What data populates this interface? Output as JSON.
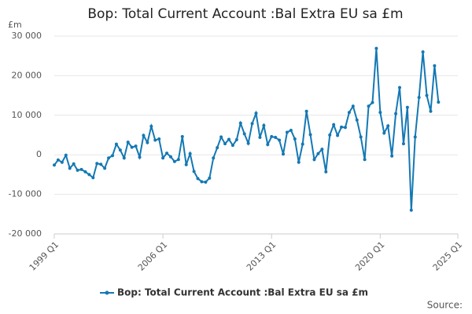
{
  "chart_data": {
    "type": "line",
    "title": "Bop: Total Current Account :Bal Extra EU sa £m",
    "y_label": "£m",
    "source": "Source:",
    "x": [
      1999,
      1999.25,
      1999.5,
      1999.75,
      2000,
      2000.25,
      2000.5,
      2000.75,
      2001,
      2001.25,
      2001.5,
      2001.75,
      2002,
      2002.25,
      2002.5,
      2002.75,
      2003,
      2003.25,
      2003.5,
      2003.75,
      2004,
      2004.25,
      2004.5,
      2004.75,
      2005,
      2005.25,
      2005.5,
      2005.75,
      2006,
      2006.25,
      2006.5,
      2006.75,
      2007,
      2007.25,
      2007.5,
      2007.75,
      2008,
      2008.25,
      2008.5,
      2008.75,
      2009,
      2009.25,
      2009.5,
      2009.75,
      2010,
      2010.25,
      2010.5,
      2010.75,
      2011,
      2011.25,
      2011.5,
      2011.75,
      2012,
      2012.25,
      2012.5,
      2012.75,
      2013,
      2013.25,
      2013.5,
      2013.75,
      2014,
      2014.25,
      2014.5,
      2014.75,
      2015,
      2015.25,
      2015.5,
      2015.75,
      2016,
      2016.25,
      2016.5,
      2016.75,
      2017,
      2017.25,
      2017.5,
      2017.75,
      2018,
      2018.25,
      2018.5,
      2018.75,
      2019,
      2019.25,
      2019.5,
      2019.75,
      2020,
      2020.25,
      2020.5,
      2020.75,
      2021,
      2021.25,
      2021.5,
      2021.75,
      2022,
      2022.25,
      2022.5,
      2022.75,
      2023,
      2023.25,
      2023.5,
      2023.75
    ],
    "series": [
      {
        "name": "Bop: Total Current Account :Bal Extra EU sa £m",
        "color": "#1478b4",
        "values": [
          -2600,
          -1300,
          -1900,
          -100,
          -3400,
          -2300,
          -3900,
          -3700,
          -4300,
          -5000,
          -5800,
          -2200,
          -2400,
          -3400,
          -800,
          -200,
          2700,
          1200,
          -800,
          3200,
          1900,
          2200,
          -600,
          4900,
          3100,
          7200,
          3700,
          4000,
          -800,
          400,
          -500,
          -1700,
          -1200,
          4600,
          -2500,
          300,
          -4200,
          -6000,
          -6800,
          -6900,
          -5900,
          -800,
          1800,
          4500,
          2800,
          3900,
          2400,
          3800,
          8000,
          5300,
          2900,
          7900,
          10500,
          4400,
          7400,
          2600,
          4600,
          4400,
          3700,
          200,
          5700,
          6200,
          4000,
          -1900,
          2700,
          11000,
          5100,
          -1200,
          300,
          1400,
          -4300,
          5000,
          7600,
          4900,
          7000,
          6900,
          10700,
          12300,
          8800,
          4500,
          -1200,
          12300,
          13200,
          26900,
          10700,
          5500,
          7300,
          -300,
          10400,
          17000,
          2800,
          12000,
          -14000,
          4500,
          14500,
          26000,
          15000,
          11000,
          22500,
          13300
        ]
      }
    ],
    "xlim": [
      1999,
      2025
    ],
    "xticks": [
      {
        "value": 1999,
        "label": "1999 Q1"
      },
      {
        "value": 2006,
        "label": "2006 Q1"
      },
      {
        "value": 2013,
        "label": "2013 Q1"
      },
      {
        "value": 2020,
        "label": "2020 Q1"
      },
      {
        "value": 2025,
        "label": "2025 Q1"
      }
    ],
    "ylim": [
      -20000,
      30000
    ],
    "yticks": [
      {
        "value": -20000,
        "label": "-20 000"
      },
      {
        "value": -10000,
        "label": "-10 000"
      },
      0,
      {
        "value": 10000,
        "label": "10 000"
      },
      {
        "value": 20000,
        "label": "20 000"
      },
      {
        "value": 30000,
        "label": "30 000"
      }
    ],
    "grid": true
  }
}
